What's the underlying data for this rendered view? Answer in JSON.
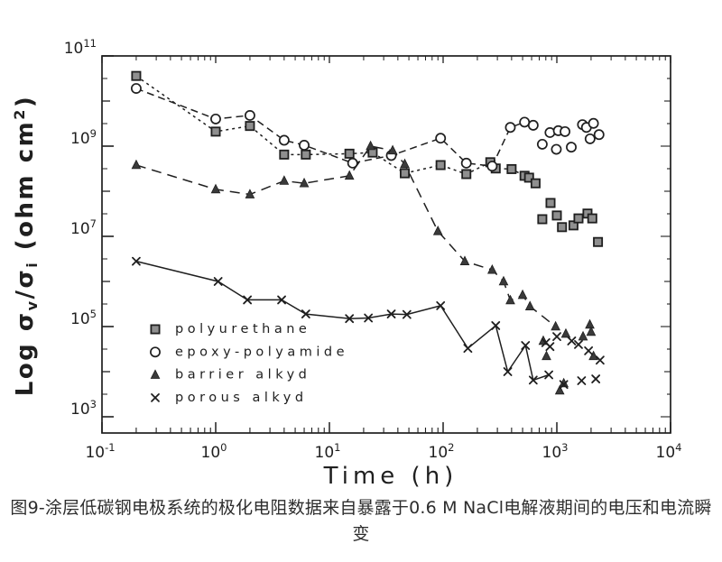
{
  "colors": {
    "ink": "#1f1f1f",
    "square_fill": "#8f8f8f",
    "triangle_fill": "#3a3a3a",
    "background": "#ffffff"
  },
  "chart_data": {
    "type": "scatter",
    "title": "",
    "xlabel": "Time (h)",
    "ylabel": "Log σv/σi (ohm cm²)",
    "ylabel_parts": [
      [
        "Log σ",
        "n"
      ],
      [
        "v",
        "sub"
      ],
      [
        "/σ",
        "n"
      ],
      [
        "i",
        "sub"
      ],
      [
        " (ohm cm",
        "n"
      ],
      [
        "2",
        "sup"
      ],
      [
        ")",
        "n"
      ]
    ],
    "x_scale": "log",
    "y_scale": "log",
    "xlim": [
      0.1,
      10000
    ],
    "ylim": [
      1000,
      100000000000
    ],
    "grid": false,
    "legend_position": "inside-lower-left",
    "x_tick_exponents": [
      -1,
      0,
      1,
      2,
      3,
      4
    ],
    "y_ticks": {
      "labeled_exponents": [
        11,
        9,
        7,
        5,
        3
      ],
      "minor_exponents": [
        10,
        8,
        6,
        4
      ]
    },
    "series": [
      {
        "name": "polyurethane",
        "label": "polyurethane",
        "marker": "filled-square",
        "dash": "3 4",
        "line_points": [
          [
            0.2,
            36000000000
          ],
          [
            1,
            2100000000
          ],
          [
            2,
            2800000000
          ],
          [
            4,
            650000000
          ],
          [
            6.2,
            650000000
          ],
          [
            15,
            680000000
          ],
          [
            24,
            720000000
          ],
          [
            46,
            250000000
          ],
          [
            95,
            380000000
          ],
          [
            160,
            240000000
          ],
          [
            260,
            440000000
          ],
          [
            290,
            320000000
          ],
          [
            400,
            310000000
          ],
          [
            520,
            220000000
          ],
          [
            570,
            200000000
          ],
          [
            650,
            150000000
          ]
        ],
        "scatter_points": [
          [
            745,
            24000000
          ],
          [
            880,
            55000000
          ],
          [
            1000,
            29000000
          ],
          [
            1110,
            16000000
          ],
          [
            1400,
            17500000
          ],
          [
            1550,
            25000000
          ],
          [
            1860,
            32000000
          ],
          [
            2050,
            25000000
          ],
          [
            2300,
            7500000
          ]
        ]
      },
      {
        "name": "epoxy-polyamide",
        "label": "epoxy-polyamide",
        "marker": "open-circle",
        "dash": "8 5",
        "line_points": [
          [
            0.2,
            19000000000
          ],
          [
            1,
            4000000000
          ],
          [
            2,
            4800000000
          ],
          [
            4,
            1350000000
          ],
          [
            6,
            1050000000
          ],
          [
            16,
            420000000
          ],
          [
            35,
            620000000
          ],
          [
            95,
            1500000000
          ],
          [
            160,
            420000000
          ],
          [
            270,
            360000000
          ],
          [
            390,
            2600000000
          ],
          [
            520,
            3400000000
          ],
          [
            620,
            2900000000
          ]
        ],
        "scatter_points": [
          [
            745,
            1100000000
          ],
          [
            870,
            2000000000
          ],
          [
            990,
            850000000
          ],
          [
            1030,
            2200000000
          ],
          [
            1180,
            2100000000
          ],
          [
            1340,
            950000000
          ],
          [
            1680,
            3000000000
          ],
          [
            1820,
            2600000000
          ],
          [
            1960,
            1450000000
          ],
          [
            2100,
            3200000000
          ],
          [
            2350,
            1800000000
          ]
        ]
      },
      {
        "name": "barrier alkyd",
        "label": "barrier alkyd",
        "marker": "filled-triangle",
        "dash": "11 7",
        "line_points": [
          [
            0.2,
            380000000
          ],
          [
            1,
            110000000
          ],
          [
            2,
            85000000
          ],
          [
            4,
            170000000
          ],
          [
            6,
            150000000
          ],
          [
            15,
            220000000
          ],
          [
            23,
            1000000000
          ],
          [
            36,
            800000000
          ],
          [
            46,
            400000000
          ],
          [
            90,
            13000000
          ],
          [
            155,
            2800000
          ],
          [
            270,
            1800000
          ],
          [
            340,
            1000000
          ],
          [
            390,
            380000
          ],
          [
            500,
            500000
          ],
          [
            580,
            280000
          ],
          [
            975,
            100000
          ]
        ],
        "scatter_points": [
          [
            760,
            48000
          ],
          [
            810,
            22000
          ],
          [
            1060,
            3800
          ],
          [
            1150,
            5500
          ],
          [
            1200,
            69000
          ],
          [
            1700,
            60000
          ],
          [
            1950,
            110000
          ],
          [
            2000,
            76000
          ],
          [
            2100,
            22000
          ]
        ]
      },
      {
        "name": "porous alkyd",
        "label": "porous alkyd",
        "marker": "x-mark",
        "dash": "",
        "line_points": [
          [
            0.2,
            2800000
          ],
          [
            1.05,
            1000000
          ],
          [
            1.9,
            390000
          ],
          [
            3.8,
            390000
          ],
          [
            6.2,
            190000
          ],
          [
            15,
            150000
          ],
          [
            22,
            155000
          ],
          [
            35,
            190000
          ],
          [
            48,
            185000
          ],
          [
            95,
            290000
          ],
          [
            165,
            33000
          ],
          [
            290,
            105000
          ],
          [
            370,
            10000
          ],
          [
            530,
            38000
          ],
          [
            620,
            6500
          ],
          [
            850,
            8500
          ]
        ],
        "scatter_points": [
          [
            800,
            44000
          ],
          [
            870,
            36000
          ],
          [
            1000,
            60000
          ],
          [
            1150,
            5200
          ],
          [
            1350,
            48000
          ],
          [
            1550,
            40000
          ],
          [
            1650,
            6300
          ],
          [
            1900,
            29000
          ],
          [
            2200,
            6900
          ],
          [
            2400,
            18000
          ]
        ]
      }
    ]
  },
  "caption": {
    "text": "图9-涂层低碳钢电极系统的极化电阻数据来自暴露于0.6 M NaCl电解液期间的电压和电流瞬变"
  }
}
